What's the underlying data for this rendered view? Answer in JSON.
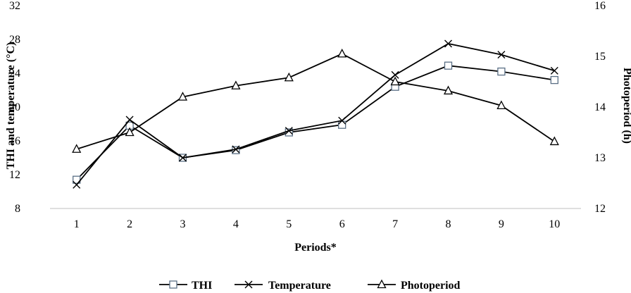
{
  "chart_data": {
    "type": "line",
    "x": [
      1,
      2,
      3,
      4,
      5,
      6,
      7,
      8,
      9,
      10
    ],
    "xlabel": "Periods*",
    "ylabel": "THI and temperature (°C)",
    "y2label": "Photoperiod (h)",
    "ylim": [
      8,
      32
    ],
    "y2lim": [
      12,
      16
    ],
    "yticks": [
      8,
      12,
      16,
      20,
      24,
      28,
      32
    ],
    "y2ticks": [
      12,
      13,
      14,
      15,
      16
    ],
    "grid": false,
    "legend_position": "bottom",
    "series": [
      {
        "name": "THI",
        "axis": "left",
        "marker": "square",
        "color": "#5a6f85",
        "values": [
          11.4,
          17.8,
          14.0,
          14.9,
          17.0,
          17.9,
          22.4,
          24.9,
          24.2,
          23.2
        ]
      },
      {
        "name": "Temperature",
        "axis": "left",
        "marker": "x",
        "color": "#000000",
        "values": [
          10.8,
          18.5,
          14.0,
          15.0,
          17.2,
          18.4,
          23.8,
          27.5,
          26.2,
          24.3
        ]
      },
      {
        "name": "Photoperiod",
        "axis": "right",
        "marker": "triangle",
        "color": "#000000",
        "values": [
          13.17,
          13.5,
          14.2,
          14.42,
          14.58,
          15.05,
          14.5,
          14.32,
          14.03,
          13.32
        ]
      }
    ]
  }
}
